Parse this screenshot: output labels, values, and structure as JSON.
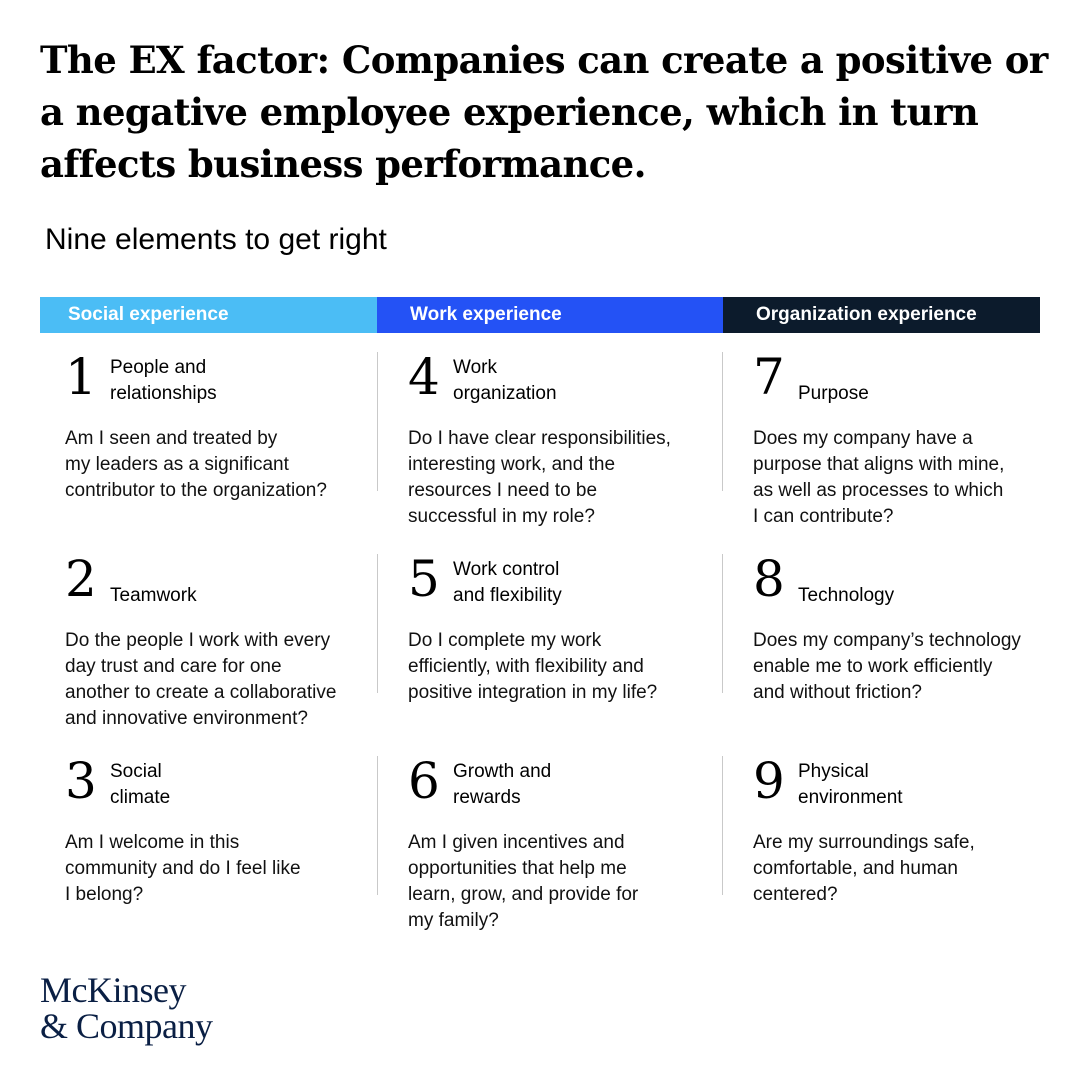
{
  "title": "The EX factor: Companies can create a positive or a negative employee experience, which in turn affects business performance.",
  "subtitle": "Nine elements to get right",
  "colors": {
    "social": "#4bbdf5",
    "work": "#2452f5",
    "organization": "#0c1b2c",
    "logo": "#0a1f44"
  },
  "columns": [
    {
      "header": "Social experience",
      "items": [
        {
          "number": "1",
          "title": "People and\nrelationships",
          "description": "Am I seen and treated by\nmy leaders as a significant\ncontributor to the organization?"
        },
        {
          "number": "2",
          "title": "Teamwork",
          "description": "Do the people I work with every\nday trust and care for one\nanother to create a collaborative\nand innovative environment?"
        },
        {
          "number": "3",
          "title": "Social\nclimate",
          "description": "Am I welcome in this\ncommunity and do I feel like\nI belong?"
        }
      ]
    },
    {
      "header": "Work experience",
      "items": [
        {
          "number": "4",
          "title": "Work\norganization",
          "description": "Do I have clear responsibilities,\ninteresting work, and the\nresources I need to be\nsuccessful in my role?"
        },
        {
          "number": "5",
          "title": "Work control\nand flexibility",
          "description": "Do I complete my work\nefficiently, with flexibility and\npositive integration in my life?"
        },
        {
          "number": "6",
          "title": "Growth and\nrewards",
          "description": "Am I given incentives and\nopportunities that help me\nlearn, grow, and provide for\nmy family?"
        }
      ]
    },
    {
      "header": "Organization experience",
      "items": [
        {
          "number": "7",
          "title": "Purpose",
          "description": "Does my company have a\npurpose that aligns with mine,\nas well as processes to which\nI can contribute?"
        },
        {
          "number": "8",
          "title": "Technology",
          "description": "Does my company’s technology\nenable me to work efficiently\nand without friction?"
        },
        {
          "number": "9",
          "title": "Physical\nenvironment",
          "description": "Are my surroundings safe,\ncomfortable, and human\ncentered?"
        }
      ]
    }
  ],
  "logo": {
    "line1": "McKinsey",
    "line2": "& Company"
  }
}
